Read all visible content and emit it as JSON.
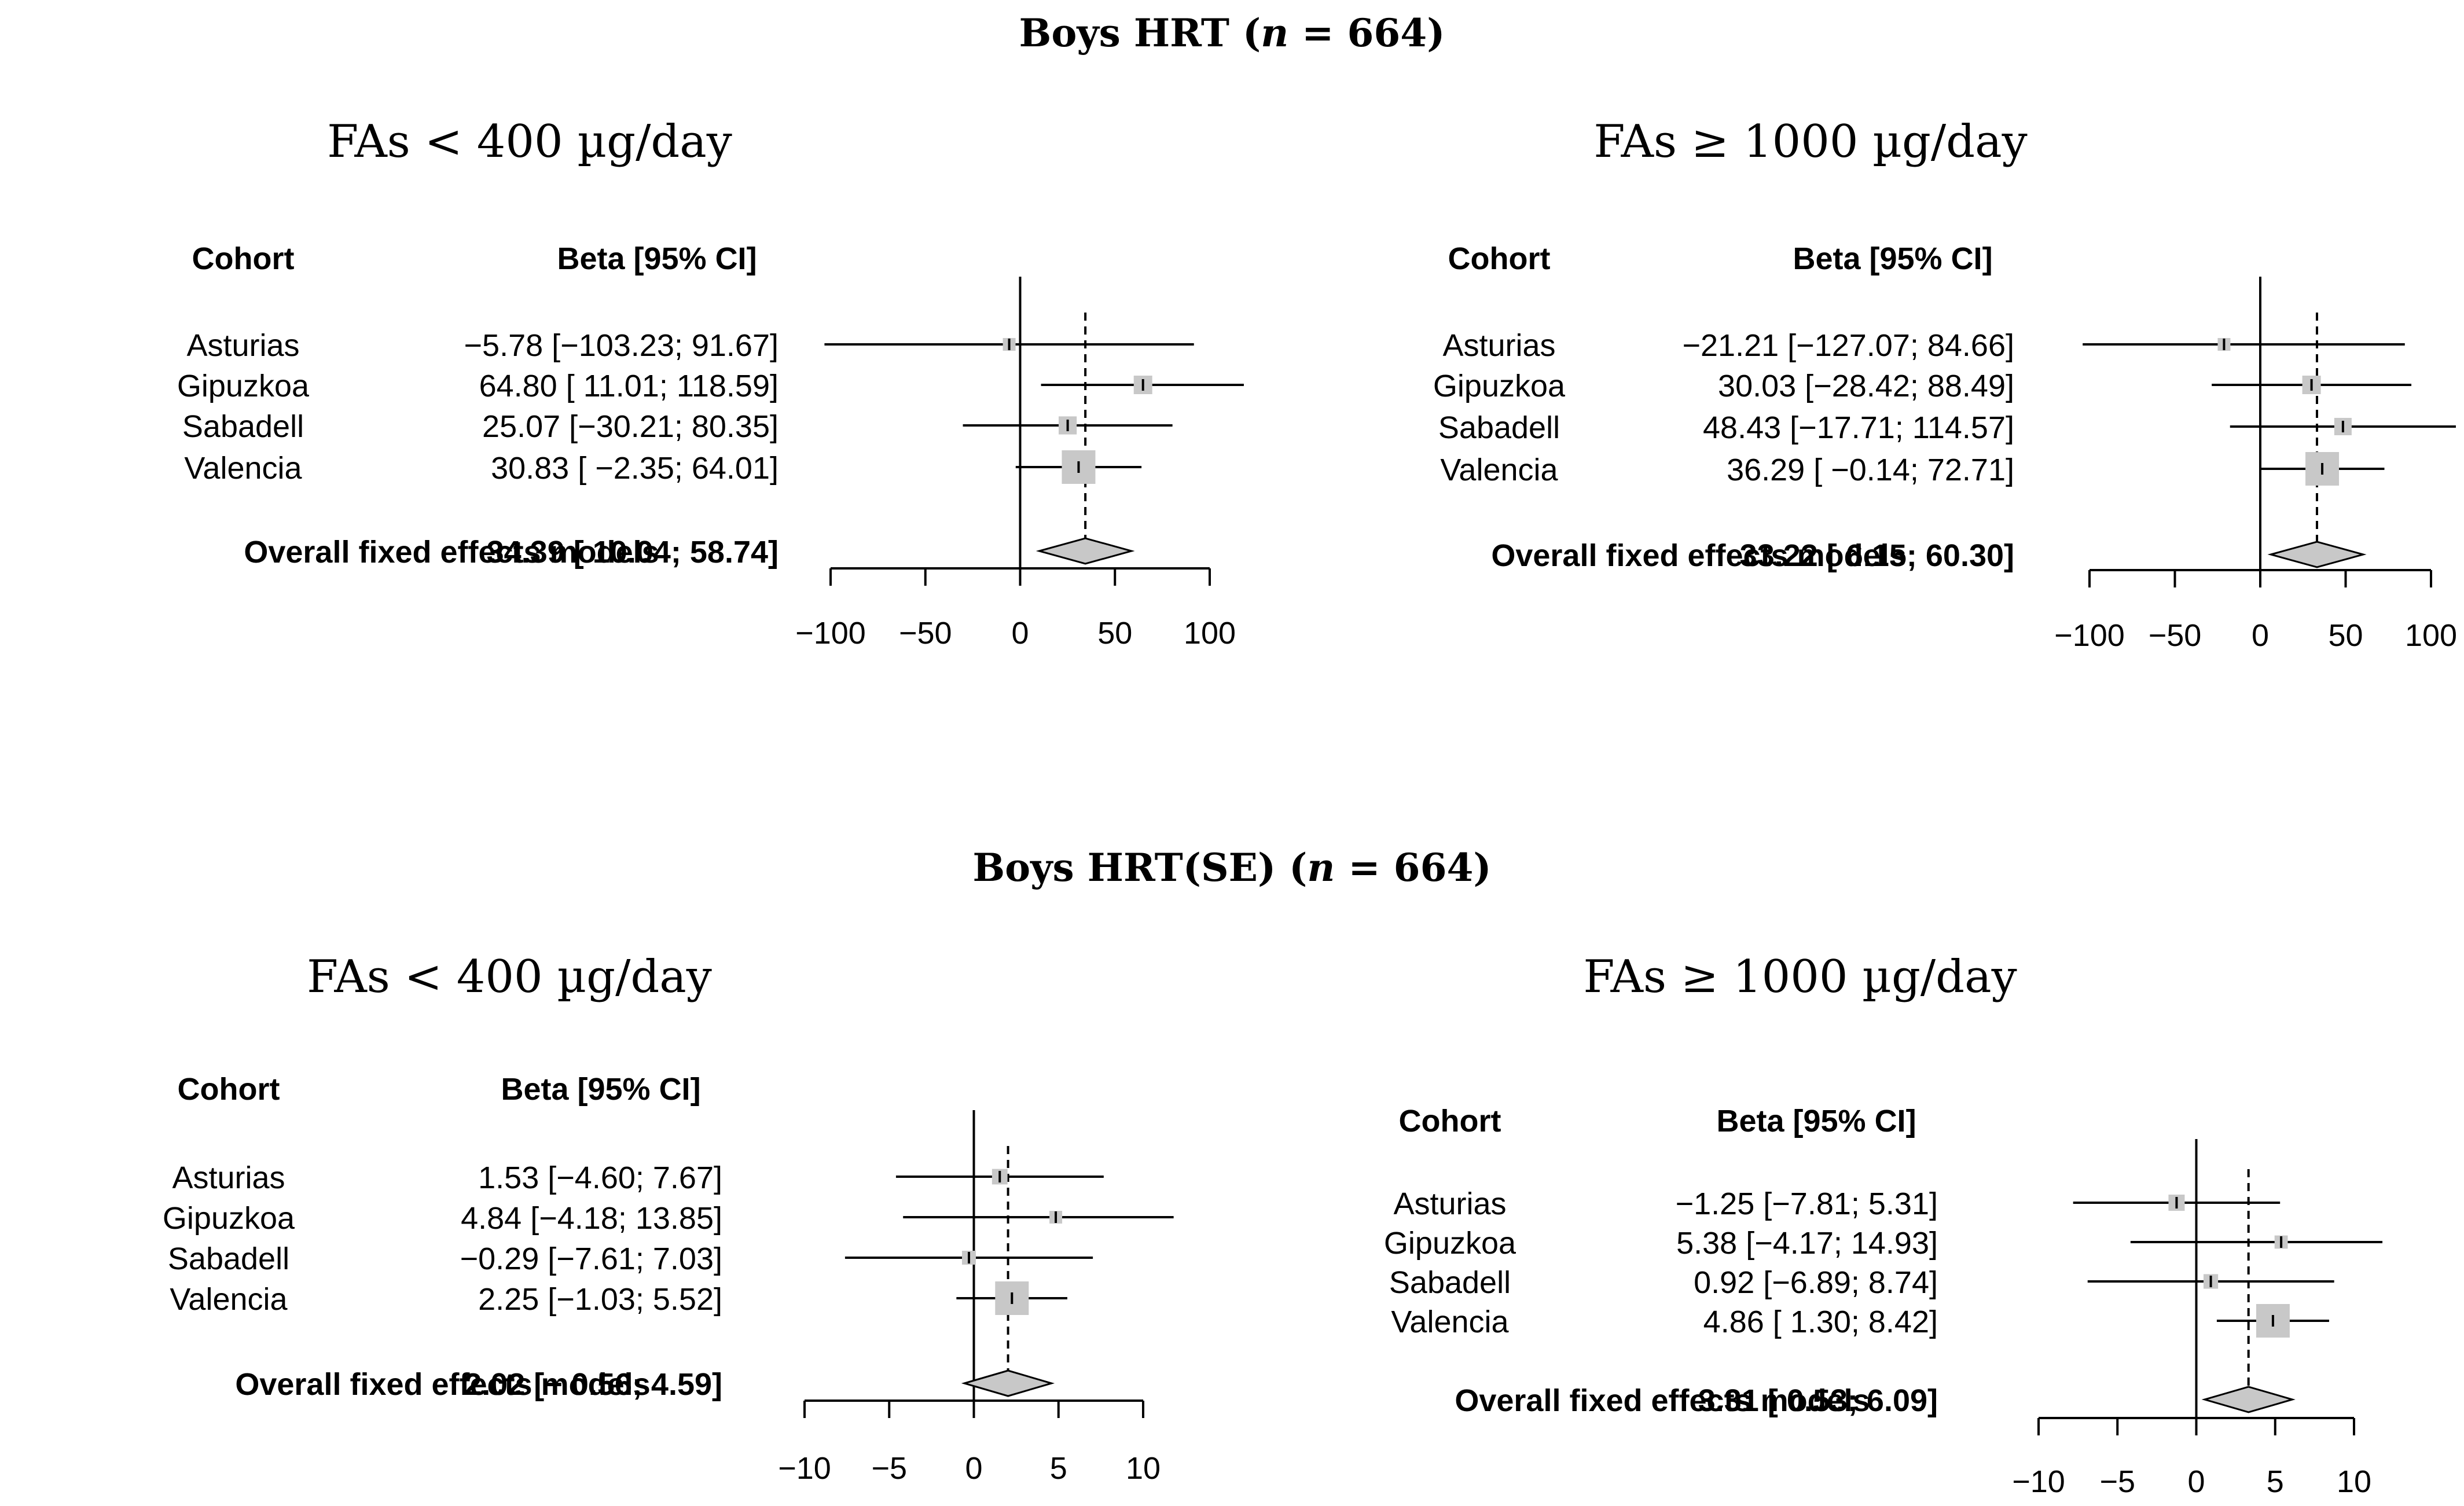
{
  "titles": {
    "section1": "Boys HRT (n = 664)",
    "section2": "Boys HRT(SE) (n = 664)"
  },
  "chart_data": [
    {
      "type": "forest",
      "section": "Boys HRT (n = 664)",
      "subtitle": "FAs < 400 µg/day",
      "col_cohort": "Cohort",
      "col_beta": "Beta [95% CI]",
      "xlim": [
        -100,
        100
      ],
      "ticks": [
        -100,
        -50,
        0,
        50,
        100
      ],
      "tick_labels": [
        "−100",
        "−50",
        "0",
        "50",
        "100"
      ],
      "rows": [
        {
          "cohort": "Asturias",
          "beta": -5.78,
          "lo": -103.23,
          "hi": 91.67,
          "label": "−5.78 [−103.23;  91.67]",
          "weight": 0.1
        },
        {
          "cohort": "Gipuzkoa",
          "beta": 64.8,
          "lo": 11.01,
          "hi": 118.59,
          "label": "64.80 [  11.01; 118.59]",
          "weight": 0.35
        },
        {
          "cohort": "Sabadell",
          "beta": 25.07,
          "lo": -30.21,
          "hi": 80.35,
          "label": "25.07 [−30.21;  80.35]",
          "weight": 0.33
        },
        {
          "cohort": "Valencia",
          "beta": 30.83,
          "lo": -2.35,
          "hi": 64.01,
          "label": "30.83 [ −2.35;  64.01]",
          "weight": 1.0
        }
      ],
      "overall": {
        "label": "Overall fixed effects models",
        "beta": 34.39,
        "lo": 10.04,
        "hi": 58.74,
        "text": "34.39 [  10.04;  58.74]"
      }
    },
    {
      "type": "forest",
      "section": "Boys HRT (n = 664)",
      "subtitle": "FAs ≥ 1000 µg/day",
      "col_cohort": "Cohort",
      "col_beta": "Beta [95% CI]",
      "xlim": [
        -100,
        100
      ],
      "ticks": [
        -100,
        -50,
        0,
        50,
        100
      ],
      "tick_labels": [
        "−100",
        "−50",
        "0",
        "50",
        "100"
      ],
      "rows": [
        {
          "cohort": "Asturias",
          "beta": -21.21,
          "lo": -127.07,
          "hi": 84.66,
          "label": "−21.21 [−127.07;  84.66]",
          "weight": 0.1
        },
        {
          "cohort": "Gipuzkoa",
          "beta": 30.03,
          "lo": -28.42,
          "hi": 88.49,
          "label": "30.03 [−28.42;  88.49]",
          "weight": 0.35
        },
        {
          "cohort": "Sabadell",
          "beta": 48.43,
          "lo": -17.71,
          "hi": 114.57,
          "label": "48.43 [−17.71; 114.57]",
          "weight": 0.3
        },
        {
          "cohort": "Valencia",
          "beta": 36.29,
          "lo": -0.14,
          "hi": 72.71,
          "label": "36.29 [ −0.14;  72.71]",
          "weight": 1.0
        }
      ],
      "overall": {
        "label": "Overall fixed effects models",
        "beta": 33.22,
        "lo": 6.15,
        "hi": 60.3,
        "text": "33.22 [   6.15;  60.30]"
      }
    },
    {
      "type": "forest",
      "section": "Boys HRT(SE) (n = 664)",
      "subtitle": "FAs < 400 µg/day",
      "col_cohort": "Cohort",
      "col_beta": "Beta [95% CI]",
      "xlim": [
        -10,
        10
      ],
      "ticks": [
        -10,
        -5,
        0,
        5,
        10
      ],
      "tick_labels": [
        "−10",
        "−5",
        "0",
        "5",
        "10"
      ],
      "rows": [
        {
          "cohort": "Asturias",
          "beta": 1.53,
          "lo": -4.6,
          "hi": 7.67,
          "label": "1.53 [−4.60; 7.67]",
          "weight": 0.22
        },
        {
          "cohort": "Gipuzkoa",
          "beta": 4.84,
          "lo": -4.18,
          "hi": 13.85,
          "label": "4.84 [−4.18; 13.85]",
          "weight": 0.1
        },
        {
          "cohort": "Sabadell",
          "beta": -0.29,
          "lo": -7.61,
          "hi": 7.03,
          "label": "−0.29 [−7.61;  7.03]",
          "weight": 0.15
        },
        {
          "cohort": "Valencia",
          "beta": 2.25,
          "lo": -1.03,
          "hi": 5.52,
          "label": "2.25 [−1.03;  5.52]",
          "weight": 1.0
        }
      ],
      "overall": {
        "label": "Overall fixed effects models",
        "beta": 2.02,
        "lo": -0.56,
        "hi": 4.59,
        "text": "2.02 [− 0.56; 4.59]"
      }
    },
    {
      "type": "forest",
      "section": "Boys HRT(SE) (n = 664)",
      "subtitle": "FAs ≥ 1000 µg/day",
      "col_cohort": "Cohort",
      "col_beta": "Beta [95% CI]",
      "xlim": [
        -10,
        10
      ],
      "ticks": [
        -10,
        -5,
        0,
        5,
        10
      ],
      "tick_labels": [
        "−10",
        "−5",
        "0",
        "5",
        "10"
      ],
      "rows": [
        {
          "cohort": "Asturias",
          "beta": -1.25,
          "lo": -7.81,
          "hi": 5.31,
          "label": "−1.25 [−7.81;  5.31]",
          "weight": 0.25
        },
        {
          "cohort": "Gipuzkoa",
          "beta": 5.38,
          "lo": -4.17,
          "hi": 14.93,
          "label": "5.38 [−4.17; 14.93]",
          "weight": 0.12
        },
        {
          "cohort": "Sabadell",
          "beta": 0.92,
          "lo": -6.89,
          "hi": 8.74,
          "label": "0.92 [−6.89;  8.74]",
          "weight": 0.18
        },
        {
          "cohort": "Valencia",
          "beta": 4.86,
          "lo": 1.3,
          "hi": 8.42,
          "label": "4.86 [ 1.30;  8.42]",
          "weight": 1.0
        }
      ],
      "overall": {
        "label": "Overall fixed effects models",
        "beta": 3.31,
        "lo": 0.53,
        "hi": 6.09,
        "text": "3.31 [ 0.53;  6.09]"
      }
    }
  ]
}
